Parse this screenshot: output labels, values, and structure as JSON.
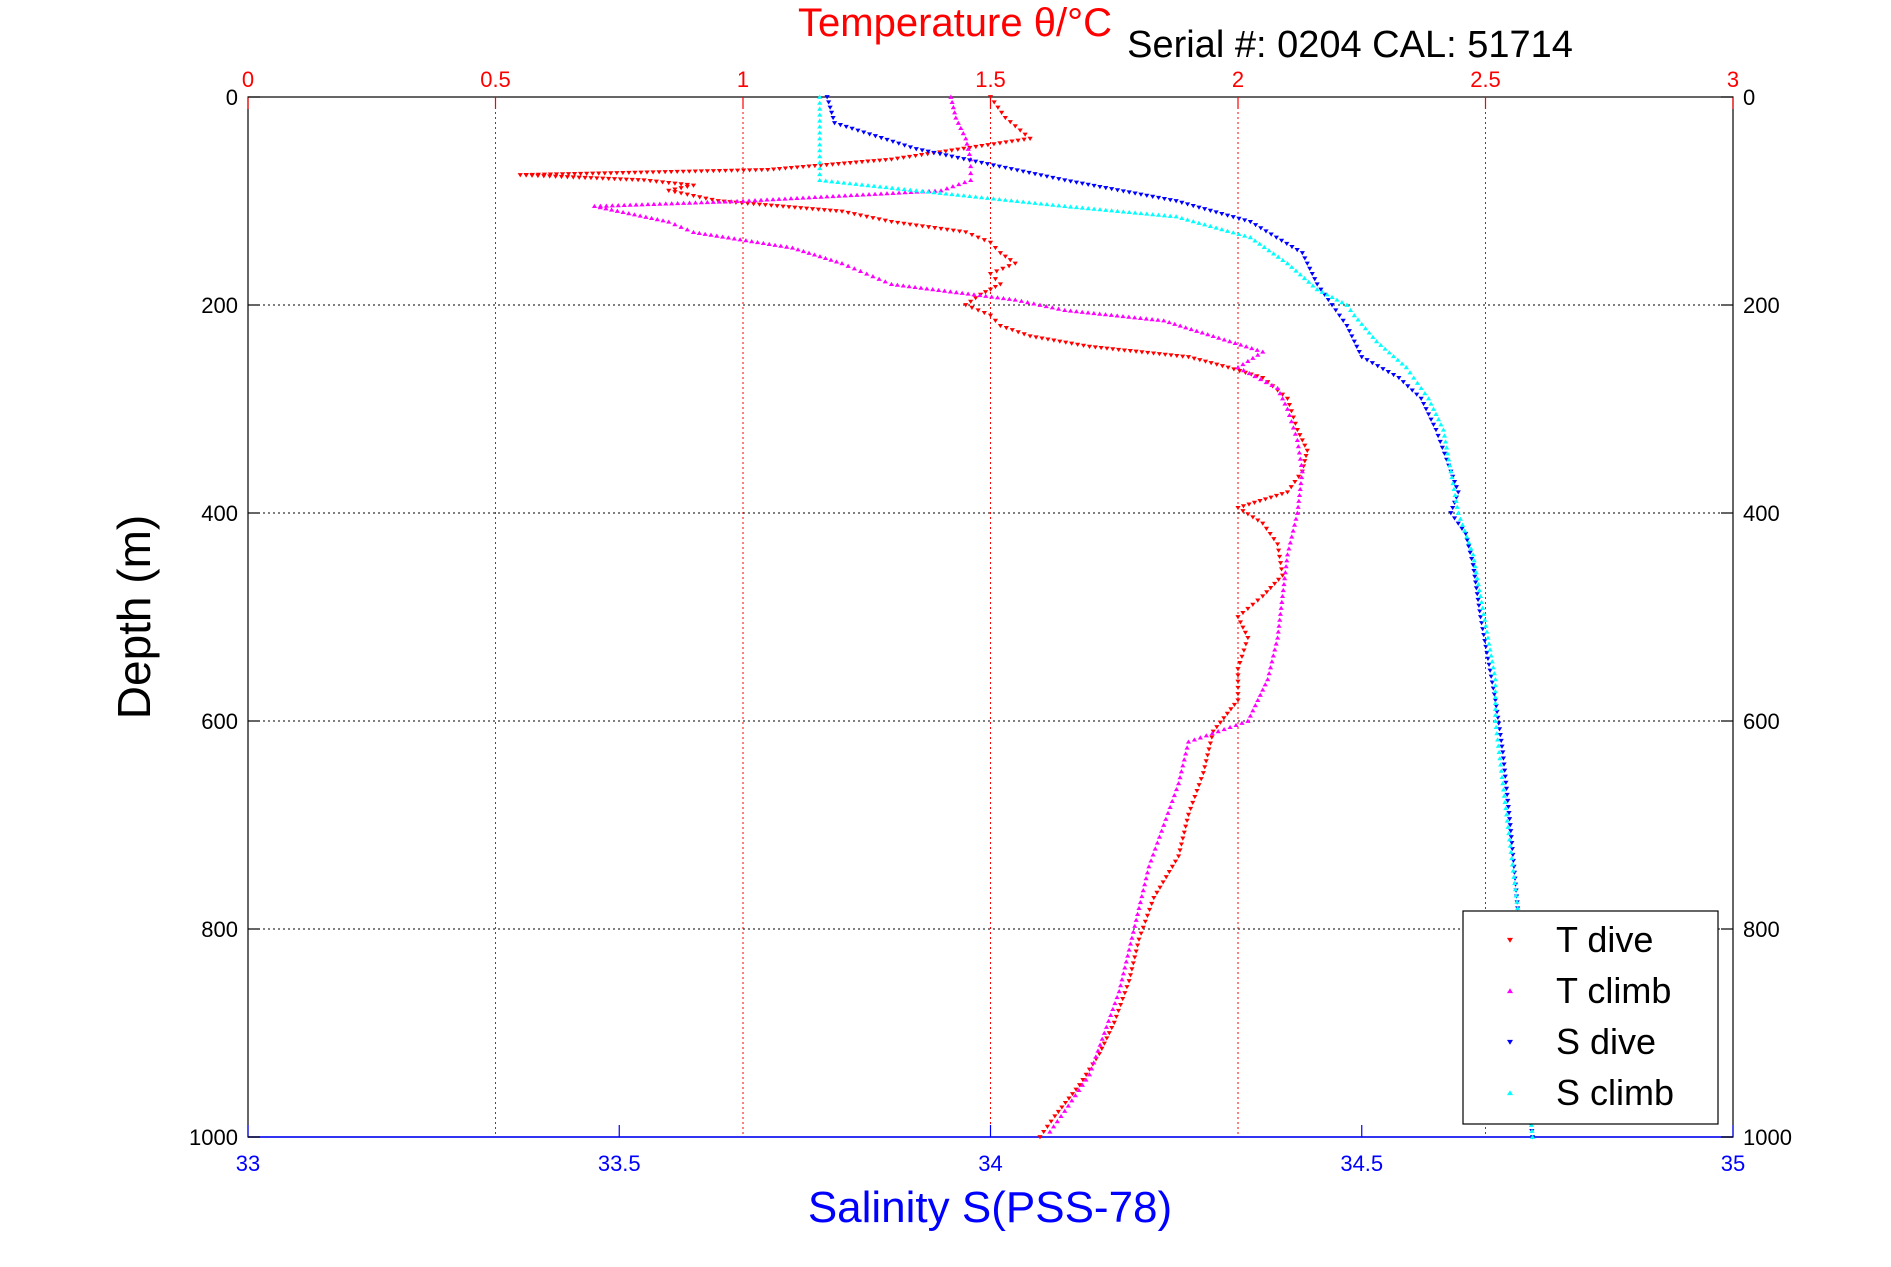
{
  "chart_data": {
    "type": "scatter",
    "title": "Temperature θ/°C",
    "subtitle": "Serial #: 0204   CAL: 51714",
    "ylabel": "Depth (m)",
    "xlabel_bottom": "Salinity S(PSS-78)",
    "x_top": {
      "range": [
        0,
        3
      ],
      "ticks": [
        "0",
        "0.5",
        "1",
        "1.5",
        "2",
        "2.5",
        "3"
      ],
      "color": "#ff0000"
    },
    "x_bottom": {
      "range": [
        33,
        35
      ],
      "ticks": [
        "33",
        "33.5",
        "34",
        "34.5",
        "35"
      ],
      "color": "#0000ff"
    },
    "y": {
      "range": [
        0,
        1000
      ],
      "reversed": true,
      "ticks": [
        "0",
        "200",
        "400",
        "600",
        "800",
        "1000"
      ]
    },
    "grid": true,
    "legend_position": "bottom-right",
    "series": [
      {
        "name": "T dive",
        "axis": "top",
        "color": "#ff0000",
        "marker": "triangle-down",
        "points": [
          [
            1.5,
            0
          ],
          [
            1.53,
            20
          ],
          [
            1.58,
            40
          ],
          [
            1.3,
            60
          ],
          [
            1.05,
            70
          ],
          [
            0.55,
            75
          ],
          [
            0.8,
            80
          ],
          [
            0.9,
            85
          ],
          [
            0.85,
            90
          ],
          [
            0.95,
            100
          ],
          [
            1.2,
            110
          ],
          [
            1.3,
            120
          ],
          [
            1.45,
            130
          ],
          [
            1.5,
            140
          ],
          [
            1.52,
            150
          ],
          [
            1.55,
            160
          ],
          [
            1.5,
            170
          ],
          [
            1.52,
            180
          ],
          [
            1.48,
            190
          ],
          [
            1.45,
            200
          ],
          [
            1.5,
            210
          ],
          [
            1.52,
            220
          ],
          [
            1.58,
            230
          ],
          [
            1.7,
            240
          ],
          [
            1.9,
            250
          ],
          [
            1.98,
            260
          ],
          [
            2.05,
            270
          ],
          [
            2.1,
            290
          ],
          [
            2.12,
            320
          ],
          [
            2.14,
            340
          ],
          [
            2.13,
            360
          ],
          [
            2.1,
            380
          ],
          [
            2.0,
            395
          ],
          [
            2.05,
            410
          ],
          [
            2.08,
            430
          ],
          [
            2.09,
            460
          ],
          [
            2.05,
            480
          ],
          [
            2.0,
            500
          ],
          [
            2.02,
            520
          ],
          [
            2.0,
            550
          ],
          [
            2.0,
            580
          ],
          [
            1.95,
            610
          ],
          [
            1.93,
            650
          ],
          [
            1.9,
            690
          ],
          [
            1.88,
            730
          ],
          [
            1.83,
            770
          ],
          [
            1.8,
            810
          ],
          [
            1.78,
            850
          ],
          [
            1.75,
            890
          ],
          [
            1.72,
            920
          ],
          [
            1.68,
            950
          ],
          [
            1.63,
            980
          ],
          [
            1.6,
            1000
          ]
        ]
      },
      {
        "name": "T climb",
        "axis": "top",
        "color": "#ff00ff",
        "marker": "triangle-up",
        "points": [
          [
            1.42,
            0
          ],
          [
            1.43,
            20
          ],
          [
            1.45,
            40
          ],
          [
            1.46,
            60
          ],
          [
            1.46,
            80
          ],
          [
            1.4,
            90
          ],
          [
            1.0,
            100
          ],
          [
            0.7,
            105
          ],
          [
            0.85,
            120
          ],
          [
            0.9,
            130
          ],
          [
            1.1,
            145
          ],
          [
            1.2,
            160
          ],
          [
            1.25,
            170
          ],
          [
            1.3,
            180
          ],
          [
            1.55,
            195
          ],
          [
            1.65,
            205
          ],
          [
            1.85,
            215
          ],
          [
            1.95,
            230
          ],
          [
            2.05,
            245
          ],
          [
            2.0,
            260
          ],
          [
            2.08,
            280
          ],
          [
            2.1,
            300
          ],
          [
            2.12,
            330
          ],
          [
            2.13,
            360
          ],
          [
            2.12,
            400
          ],
          [
            2.1,
            440
          ],
          [
            2.09,
            480
          ],
          [
            2.08,
            520
          ],
          [
            2.06,
            560
          ],
          [
            2.02,
            600
          ],
          [
            1.9,
            620
          ],
          [
            1.88,
            660
          ],
          [
            1.85,
            700
          ],
          [
            1.82,
            740
          ],
          [
            1.8,
            780
          ],
          [
            1.78,
            820
          ],
          [
            1.76,
            860
          ],
          [
            1.73,
            900
          ],
          [
            1.7,
            940
          ],
          [
            1.65,
            975
          ],
          [
            1.62,
            995
          ]
        ]
      },
      {
        "name": "S dive",
        "axis": "bottom",
        "color": "#0000ff",
        "marker": "triangle-down",
        "points": [
          [
            33.78,
            0
          ],
          [
            33.79,
            25
          ],
          [
            33.9,
            50
          ],
          [
            34.1,
            80
          ],
          [
            34.25,
            100
          ],
          [
            34.35,
            120
          ],
          [
            34.42,
            150
          ],
          [
            34.44,
            180
          ],
          [
            34.46,
            200
          ],
          [
            34.48,
            220
          ],
          [
            34.5,
            250
          ],
          [
            34.55,
            270
          ],
          [
            34.58,
            290
          ],
          [
            34.6,
            320
          ],
          [
            34.62,
            360
          ],
          [
            34.63,
            380
          ],
          [
            34.62,
            400
          ],
          [
            34.64,
            420
          ],
          [
            34.65,
            450
          ],
          [
            34.66,
            500
          ],
          [
            34.67,
            540
          ],
          [
            34.68,
            580
          ],
          [
            34.69,
            630
          ],
          [
            34.7,
            700
          ],
          [
            34.71,
            780
          ],
          [
            34.72,
            860
          ],
          [
            34.72,
            940
          ],
          [
            34.73,
            1000
          ]
        ]
      },
      {
        "name": "S climb",
        "axis": "bottom",
        "color": "#00ffff",
        "marker": "triangle-up",
        "points": [
          [
            33.77,
            0
          ],
          [
            33.77,
            40
          ],
          [
            33.77,
            80
          ],
          [
            33.9,
            90
          ],
          [
            34.1,
            105
          ],
          [
            34.25,
            115
          ],
          [
            34.35,
            135
          ],
          [
            34.4,
            160
          ],
          [
            34.44,
            185
          ],
          [
            34.48,
            200
          ],
          [
            34.49,
            210
          ],
          [
            34.52,
            235
          ],
          [
            34.56,
            260
          ],
          [
            34.59,
            290
          ],
          [
            34.61,
            320
          ],
          [
            34.62,
            360
          ],
          [
            34.63,
            400
          ],
          [
            34.65,
            440
          ],
          [
            34.66,
            480
          ],
          [
            34.67,
            520
          ],
          [
            34.68,
            560
          ],
          [
            34.68,
            600
          ],
          [
            34.69,
            660
          ],
          [
            34.7,
            720
          ],
          [
            34.71,
            780
          ],
          [
            34.72,
            850
          ],
          [
            34.72,
            920
          ],
          [
            34.73,
            1000
          ]
        ]
      }
    ]
  }
}
